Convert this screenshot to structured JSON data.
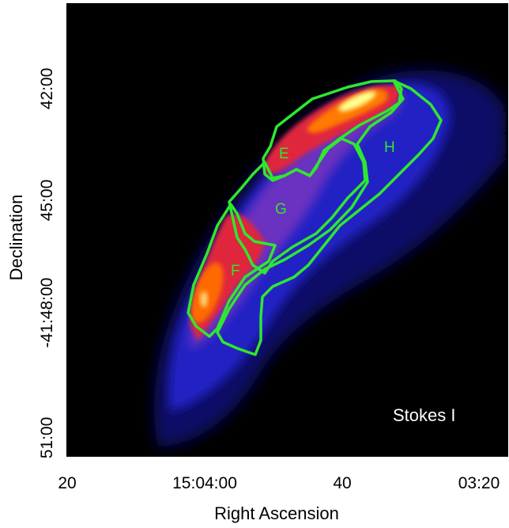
{
  "chart_data": {
    "type": "heatmap",
    "xlabel": "Right Ascension",
    "ylabel": "Declination",
    "x_tick_labels": [
      "20",
      "15:04:00",
      "40",
      "03:20"
    ],
    "y_tick_labels": [
      "42:00",
      "45:00",
      "-41:48:00",
      "51:00"
    ],
    "x_axis": {
      "unit": "RA (hh:mm:ss)",
      "range_seconds_of_time": [
        "15:04:30",
        "15:03:10"
      ],
      "direction": "decreasing"
    },
    "y_axis": {
      "unit": "Dec (deg:arcmin)",
      "range_arcmin": [
        "-41:40:00",
        "-41:52:00"
      ]
    },
    "colormap": [
      "#000000",
      "#0a0a5a",
      "#2a2ad6",
      "#7a36c8",
      "#c8265a",
      "#ff2a10",
      "#ff8c00",
      "#ffff80"
    ],
    "panel_label": "Stokes I",
    "contour_color": "#2ee82e",
    "regions": [
      {
        "name": "E"
      },
      {
        "name": "F"
      },
      {
        "name": "G"
      },
      {
        "name": "H"
      }
    ]
  }
}
